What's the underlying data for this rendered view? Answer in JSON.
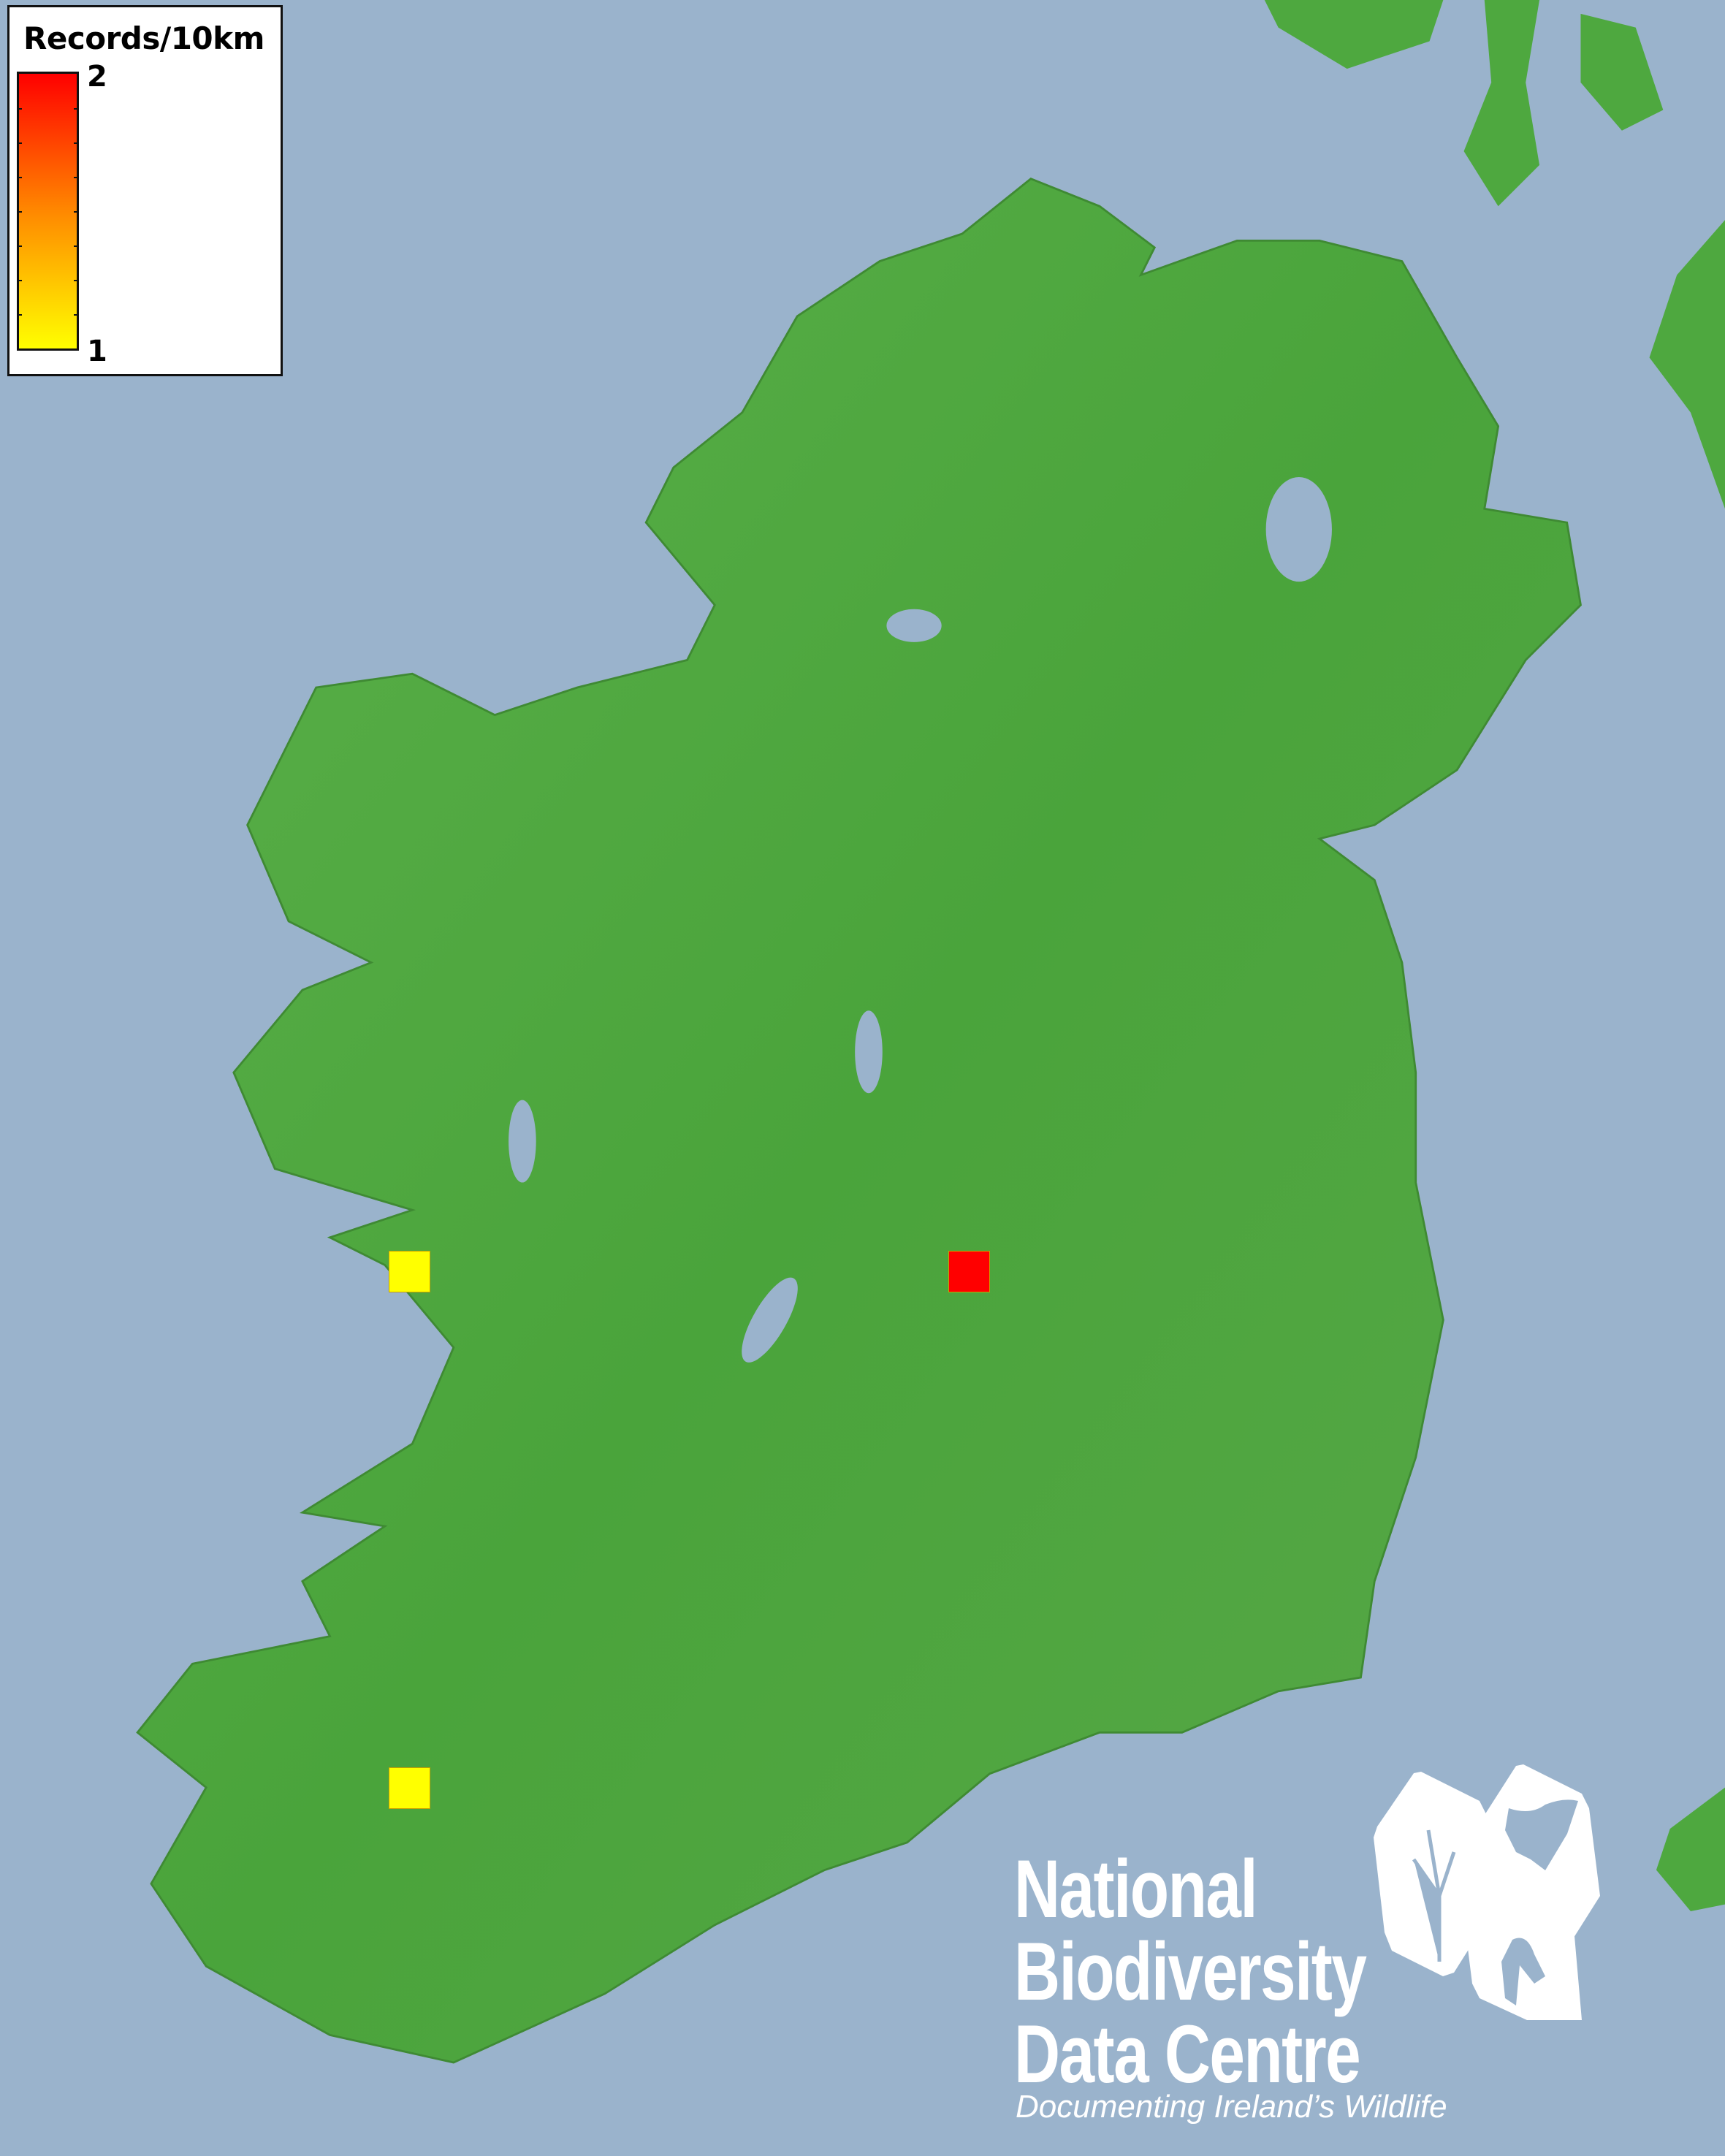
{
  "legend": {
    "title": "Records/10km",
    "max_label": "2",
    "min_label": "1",
    "color_max": "#ff0000",
    "color_min": "#ffff00"
  },
  "records": [
    {
      "value": 1,
      "color": "#ffff00"
    },
    {
      "value": 2,
      "color": "#ff0000"
    },
    {
      "value": 1,
      "color": "#ffff00"
    }
  ],
  "logo": {
    "line1": "National",
    "line2": "Biodiversity",
    "line3": "Data Centre",
    "tagline": "Documenting Ireland’s Wildlife"
  },
  "colors": {
    "sea": "#9ab3cc",
    "land": "#4ea83f"
  }
}
